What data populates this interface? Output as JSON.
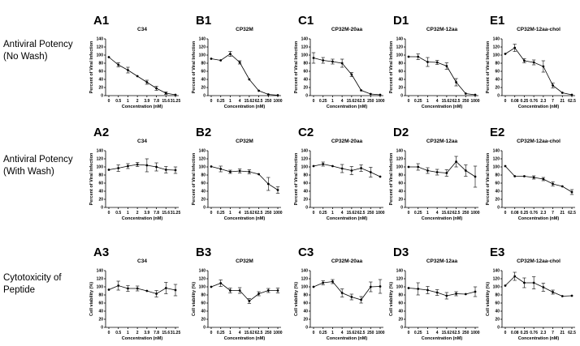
{
  "row_labels": [
    [
      "Antiviral Potency",
      "(No Wash)"
    ],
    [
      "Antiviral Potency",
      "(With Wash)"
    ],
    [
      "Cytotoxicity of",
      "Peptide"
    ]
  ],
  "chart_data": [
    {
      "id": "A1",
      "type": "line",
      "title": "C34",
      "xlabel": "Concentration (nM)",
      "ylabel": "Percent of Viral Infection",
      "ylim": [
        0,
        140
      ],
      "yticks": [
        0,
        20,
        40,
        60,
        80,
        100,
        120,
        140
      ],
      "categories": [
        "0",
        "0.5",
        "1",
        "2",
        "3.9",
        "7.8",
        "15.6",
        "31.25"
      ],
      "values": [
        95,
        76,
        63,
        48,
        33,
        18,
        6,
        2
      ],
      "errors": [
        0,
        5,
        7,
        0,
        5,
        5,
        3,
        0
      ]
    },
    {
      "id": "B1",
      "type": "line",
      "title": "CP32M",
      "xlabel": "Concentration (nM)",
      "ylabel": "Percent of Viral Infection",
      "ylim": [
        0,
        140
      ],
      "yticks": [
        0,
        20,
        40,
        60,
        80,
        100,
        120,
        140
      ],
      "categories": [
        "0",
        "0.25",
        "1",
        "4",
        "15.62",
        "62.5",
        "250",
        "1000"
      ],
      "values": [
        91,
        87,
        103,
        82,
        40,
        12,
        3,
        1
      ],
      "errors": [
        0,
        0,
        6,
        4,
        0,
        0,
        0,
        0
      ]
    },
    {
      "id": "C1",
      "type": "line",
      "title": "CP32M-20aa",
      "xlabel": "Concentration (nM)",
      "ylabel": "Percent of Viral Infection",
      "ylim": [
        0,
        140
      ],
      "yticks": [
        0,
        20,
        40,
        60,
        80,
        100,
        120,
        140
      ],
      "categories": [
        "0",
        "0.25",
        "1",
        "4",
        "15.62",
        "62.5",
        "250",
        "1000"
      ],
      "values": [
        93,
        87,
        84,
        80,
        52,
        13,
        4,
        2
      ],
      "errors": [
        13,
        7,
        6,
        10,
        5,
        0,
        0,
        0
      ]
    },
    {
      "id": "D1",
      "type": "line",
      "title": "CP32M-12aa",
      "xlabel": "Concentration (nM)",
      "ylabel": "Percent of Viral Infection",
      "ylim": [
        0,
        140
      ],
      "yticks": [
        0,
        20,
        40,
        60,
        80,
        100,
        120,
        140
      ],
      "categories": [
        "0",
        "0.25",
        "1",
        "4",
        "15.62",
        "62.5",
        "250",
        "1000"
      ],
      "values": [
        96,
        96,
        83,
        82,
        73,
        33,
        5,
        2
      ],
      "errors": [
        0,
        7,
        11,
        5,
        8,
        9,
        0,
        0
      ]
    },
    {
      "id": "E1",
      "type": "line",
      "title": "CP32M-12aa-chol",
      "xlabel": "Concentration (nM)",
      "ylabel": "Percent of Viral Infection",
      "ylim": [
        0,
        140
      ],
      "yticks": [
        0,
        20,
        40,
        60,
        80,
        100,
        120,
        140
      ],
      "categories": [
        "0",
        "0.08",
        "0.25",
        "0.76",
        "2.3",
        "7",
        "21",
        "62.5"
      ],
      "values": [
        103,
        118,
        86,
        82,
        72,
        25,
        7,
        2
      ],
      "errors": [
        0,
        9,
        5,
        6,
        14,
        6,
        0,
        0
      ]
    },
    {
      "id": "A2",
      "type": "line",
      "title": "C34",
      "xlabel": "Concentration (nM)",
      "ylabel": "Percent of Viral Infection",
      "ylim": [
        0,
        140
      ],
      "yticks": [
        0,
        20,
        40,
        60,
        80,
        100,
        120,
        140
      ],
      "categories": [
        "0",
        "0.5",
        "1",
        "2",
        "3.9",
        "7.8",
        "15.6",
        "31.25"
      ],
      "values": [
        93,
        97,
        102,
        106,
        104,
        100,
        93,
        92
      ],
      "errors": [
        0,
        8,
        6,
        5,
        16,
        10,
        8,
        8
      ]
    },
    {
      "id": "B2",
      "type": "line",
      "title": "CP32M",
      "xlabel": "Concentration (nM)",
      "ylabel": "Percent of Viral Infection",
      "ylim": [
        0,
        140
      ],
      "yticks": [
        0,
        20,
        40,
        60,
        80,
        100,
        120,
        140
      ],
      "categories": [
        "0",
        "0.25",
        "1",
        "4",
        "15.62",
        "62.5",
        "250",
        "1000"
      ],
      "values": [
        101,
        95,
        88,
        90,
        88,
        82,
        58,
        43
      ],
      "errors": [
        0,
        7,
        4,
        5,
        5,
        0,
        16,
        8
      ]
    },
    {
      "id": "C2",
      "type": "line",
      "title": "CP32M-20aa",
      "xlabel": "Concentration (nM)",
      "ylabel": "Percent of Viral Infection",
      "ylim": [
        0,
        140
      ],
      "yticks": [
        0,
        20,
        40,
        60,
        80,
        100,
        120,
        140
      ],
      "categories": [
        "0",
        "0.25",
        "1",
        "4",
        "15.62",
        "62.5",
        "250",
        "1000"
      ],
      "values": [
        102,
        107,
        102,
        96,
        91,
        97,
        87,
        76
      ],
      "errors": [
        0,
        5,
        0,
        10,
        10,
        8,
        12,
        0
      ]
    },
    {
      "id": "D2",
      "type": "line",
      "title": "CP32M-12aa",
      "xlabel": "Concentration (nM)",
      "ylabel": "Percent of Viral Infection",
      "ylim": [
        0,
        140
      ],
      "yticks": [
        0,
        20,
        40,
        60,
        80,
        100,
        120,
        140
      ],
      "categories": [
        "0",
        "0.25",
        "1",
        "4",
        "15.62",
        "62.5",
        "250",
        "1000"
      ],
      "values": [
        100,
        100,
        91,
        87,
        85,
        113,
        91,
        76
      ],
      "errors": [
        0,
        8,
        7,
        7,
        8,
        13,
        14,
        26
      ]
    },
    {
      "id": "E2",
      "type": "line",
      "title": "CP32M-12aa-chol",
      "xlabel": "Concentration (nM)",
      "ylabel": "Percent of Viral Infection",
      "ylim": [
        0,
        140
      ],
      "yticks": [
        0,
        20,
        40,
        60,
        80,
        100,
        120,
        140
      ],
      "categories": [
        "0",
        "0.08",
        "0.25",
        "0.76",
        "2.3",
        "7",
        "21",
        "62.5"
      ],
      "values": [
        102,
        77,
        77,
        74,
        70,
        58,
        52,
        38
      ],
      "errors": [
        0,
        0,
        0,
        4,
        4,
        5,
        0,
        6
      ]
    },
    {
      "id": "A3",
      "type": "line",
      "title": "C34",
      "xlabel": "Concentration (nM)",
      "ylabel": "Cell viability (%)",
      "ylim": [
        0,
        140
      ],
      "yticks": [
        0,
        20,
        40,
        60,
        80,
        100,
        120,
        140
      ],
      "categories": [
        "0",
        "0.5",
        "1",
        "2",
        "3.9",
        "7.8",
        "15.6",
        "31.25"
      ],
      "values": [
        93,
        103,
        96,
        96,
        90,
        83,
        97,
        92
      ],
      "errors": [
        0,
        11,
        7,
        6,
        0,
        8,
        14,
        14
      ]
    },
    {
      "id": "B3",
      "type": "line",
      "title": "CP32M",
      "xlabel": "Concentration (nM)",
      "ylabel": "Cell viability (%)",
      "ylim": [
        0,
        140
      ],
      "yticks": [
        0,
        20,
        40,
        60,
        80,
        100,
        120,
        140
      ],
      "categories": [
        "0",
        "0.25",
        "1",
        "4",
        "15.62",
        "62.5",
        "250",
        "1000"
      ],
      "values": [
        100,
        109,
        91,
        91,
        65,
        83,
        91,
        91
      ],
      "errors": [
        0,
        8,
        6,
        7,
        6,
        5,
        5,
        6
      ]
    },
    {
      "id": "C3",
      "type": "line",
      "title": "CP32M-20aa",
      "xlabel": "Concentration (nM)",
      "ylabel": "Cell viability (%)",
      "ylim": [
        0,
        140
      ],
      "yticks": [
        0,
        20,
        40,
        60,
        80,
        100,
        120,
        140
      ],
      "categories": [
        "0",
        "0.25",
        "1",
        "4",
        "15.62",
        "62.5",
        "250",
        "1000"
      ],
      "values": [
        100,
        110,
        113,
        85,
        75,
        68,
        100,
        101
      ],
      "errors": [
        0,
        5,
        5,
        10,
        7,
        8,
        12,
        17
      ]
    },
    {
      "id": "D3",
      "type": "line",
      "title": "CP32M-12aa",
      "xlabel": "Concentration (nM)",
      "ylabel": "Cell viability (%)",
      "ylim": [
        0,
        140
      ],
      "yticks": [
        0,
        20,
        40,
        60,
        80,
        100,
        120,
        140
      ],
      "categories": [
        "0",
        "0.25",
        "1",
        "4",
        "15.62",
        "62.5",
        "250",
        "1000"
      ],
      "values": [
        97,
        95,
        92,
        86,
        78,
        83,
        82,
        88
      ],
      "errors": [
        0,
        15,
        9,
        7,
        8,
        5,
        0,
        12
      ]
    },
    {
      "id": "E3",
      "type": "line",
      "title": "CP32M-12aa-chol",
      "xlabel": "Concentration (nM)",
      "ylabel": "Cell viability (%)",
      "ylim": [
        0,
        140
      ],
      "yticks": [
        0,
        20,
        40,
        60,
        80,
        100,
        120,
        140
      ],
      "categories": [
        "0",
        "0.08",
        "0.25",
        "0.76",
        "2.3",
        "7",
        "21",
        "62.5"
      ],
      "values": [
        103,
        126,
        110,
        110,
        99,
        87,
        77,
        78
      ],
      "errors": [
        0,
        10,
        12,
        15,
        10,
        5,
        0,
        0
      ]
    }
  ]
}
